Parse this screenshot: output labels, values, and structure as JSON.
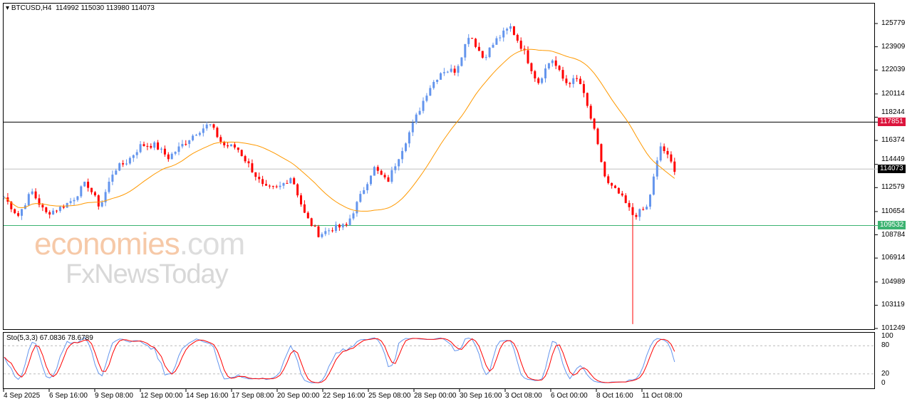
{
  "header": {
    "symbol": "BTCUSD,H4",
    "ohlc": "114992 115030 113980 114073"
  },
  "watermark": {
    "brand1": "economies",
    "brand1_suffix": ".com",
    "brand2": "FxNewsToday"
  },
  "price_axis": [
    "125779",
    "123909",
    "122039",
    "120114",
    "118244",
    "116374",
    "114449",
    "112579",
    "110654",
    "108784",
    "106914",
    "104989",
    "103119",
    "101249"
  ],
  "levels": {
    "resistance": "117851",
    "current": "114073",
    "support": "109532"
  },
  "stoch": {
    "label": "Sto(5,3,3) 67.0836 78.6789",
    "axis": [
      "100",
      "80",
      "20",
      "0"
    ]
  },
  "time_axis": [
    "4 Sep 2025",
    "6 Sep 16:00",
    "9 Sep 08:00",
    "12 Sep 00:00",
    "14 Sep 16:00",
    "17 Sep 08:00",
    "20 Sep 00:00",
    "22 Sep 16:00",
    "25 Sep 08:00",
    "28 Sep 00:00",
    "30 Sep 16:00",
    "3 Oct 08:00",
    "6 Oct 00:00",
    "8 Oct 16:00",
    "11 Oct 08:00"
  ],
  "colors": {
    "bull": "#6495ED",
    "bear": "#FF0000",
    "ma": "#FF9900",
    "resistance_tag": "#DC143C",
    "support_tag": "#3CB371",
    "current_tag": "#000000"
  },
  "chart_data": {
    "type": "candlestick",
    "ylim": [
      101249,
      125779
    ],
    "close_path": [
      111800,
      110300,
      112300,
      110500,
      110900,
      111600,
      113000,
      111000,
      114000,
      114700,
      116000,
      116000,
      115000,
      116000,
      117000,
      117700,
      116000,
      115800,
      114200,
      112500,
      112500,
      113500,
      110300,
      108800,
      109300,
      109500,
      111800,
      114200,
      113000,
      115500,
      118000,
      120500,
      122000,
      122000,
      125000,
      123000,
      124500,
      125500,
      123500,
      121000,
      123000,
      121000,
      121300,
      117700,
      113000,
      112000,
      110300,
      111000,
      116000,
      114073
    ],
    "low_spike": 101600
  }
}
